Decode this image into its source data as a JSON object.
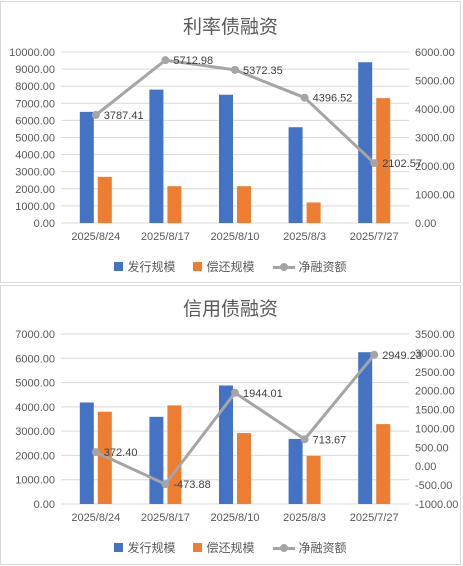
{
  "colors": {
    "issue": "#4472c4",
    "repay": "#ed7d31",
    "net": "#a5a5a5",
    "grid": "#d9d9d9"
  },
  "chart_data": [
    {
      "type": "bar",
      "title": "利率债融资",
      "categories": [
        "2025/8/24",
        "2025/8/17",
        "2025/8/10",
        "2025/8/3",
        "2025/7/27"
      ],
      "series": [
        {
          "name": "发行规模",
          "axis": "left",
          "values": [
            6500,
            7800,
            7500,
            5600,
            9400
          ]
        },
        {
          "name": "偿还规模",
          "axis": "left",
          "values": [
            2700,
            2150,
            2150,
            1200,
            7300
          ]
        },
        {
          "name": "净融资额",
          "axis": "right",
          "type": "line",
          "values": [
            3787.41,
            5712.98,
            5372.35,
            4396.52,
            2102.57
          ],
          "labels": [
            "3787.41",
            "5712.98",
            "5372.35",
            "4396.52",
            "2102.57"
          ]
        }
      ],
      "left_axis": {
        "min": 0,
        "max": 10000,
        "step": 1000,
        "ticks": [
          "0.00",
          "1000.00",
          "2000.00",
          "3000.00",
          "4000.00",
          "5000.00",
          "6000.00",
          "7000.00",
          "8000.00",
          "9000.00",
          "10000.00"
        ]
      },
      "right_axis": {
        "min": 0,
        "max": 6000,
        "step": 1000,
        "ticks": [
          "0.00",
          "1000.00",
          "2000.00",
          "3000.00",
          "4000.00",
          "5000.00",
          "6000.00"
        ]
      },
      "grid": true,
      "legend": "bottom",
      "legend_items": [
        "发行规模",
        "偿还规模",
        "净融资额"
      ]
    },
    {
      "type": "bar",
      "title": "信用债融资",
      "categories": [
        "2025/8/24",
        "2025/8/17",
        "2025/8/10",
        "2025/8/3",
        "2025/7/27"
      ],
      "series": [
        {
          "name": "发行规模",
          "axis": "left",
          "values": [
            4180,
            3590,
            4880,
            2680,
            6250
          ]
        },
        {
          "name": "偿还规模",
          "axis": "left",
          "values": [
            3800,
            4060,
            2920,
            1980,
            3290
          ]
        },
        {
          "name": "净融资额",
          "axis": "right",
          "type": "line",
          "values": [
            372.4,
            -473.88,
            1944.01,
            713.67,
            2949.23
          ],
          "labels": [
            "372.40",
            "-473.88",
            "1944.01",
            "713.67",
            "2949.23"
          ]
        }
      ],
      "left_axis": {
        "min": 0,
        "max": 7000,
        "step": 1000,
        "ticks": [
          "0.00",
          "1000.00",
          "2000.00",
          "3000.00",
          "4000.00",
          "5000.00",
          "6000.00",
          "7000.00"
        ]
      },
      "right_axis": {
        "min": -1000,
        "max": 3500,
        "step": 500,
        "ticks": [
          "-1000.00",
          "-500.00",
          "0.00",
          "500.00",
          "1000.00",
          "1500.00",
          "2000.00",
          "2500.00",
          "3000.00",
          "3500.00"
        ]
      },
      "grid": true,
      "legend": "bottom",
      "legend_items": [
        "发行规模",
        "偿还规模",
        "净融资额"
      ]
    }
  ]
}
